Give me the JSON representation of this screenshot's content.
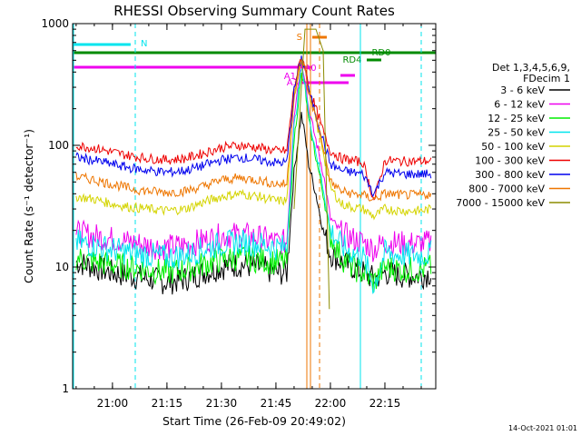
{
  "chart_data": {
    "type": "line",
    "title": "RHESSI Observing Summary Count Rates",
    "xlabel": "Start Time (26-Feb-09 20:49:02)",
    "ylabel": "Count Rate (s⁻¹ detector⁻¹)",
    "y_scale": "log",
    "ylim": [
      1,
      1000
    ],
    "xlim": [
      "20:49:02",
      "22:29:00"
    ],
    "x_ticks": [
      "21:00",
      "21:15",
      "21:30",
      "21:45",
      "22:00",
      "22:15"
    ],
    "y_ticks": [
      "1",
      "10",
      "100",
      "1000"
    ],
    "grid": false,
    "legend_position": "right",
    "legend_header": [
      "Det 1,3,4,5,6,9,",
      "FDecim 1"
    ],
    "timestamp": "14-Oct-2021 01:01",
    "x": [
      "20:50",
      "20:55",
      "21:00",
      "21:05",
      "21:10",
      "21:15",
      "21:20",
      "21:25",
      "21:30",
      "21:35",
      "21:40",
      "21:45",
      "21:48",
      "21:50",
      "21:52",
      "21:53",
      "21:54",
      "21:56",
      "21:58",
      "22:00",
      "22:03",
      "22:06",
      "22:09",
      "22:12",
      "22:15",
      "22:20",
      "22:25",
      "22:28"
    ],
    "series": [
      {
        "name": "3 - 6 keV",
        "color": "#000000",
        "values": [
          11,
          10,
          9,
          8.5,
          8,
          7.5,
          8,
          9,
          10,
          10.5,
          10,
          9,
          9,
          60,
          180,
          120,
          70,
          40,
          20,
          13,
          11,
          10,
          9,
          8,
          9,
          8.5,
          8.5,
          9
        ]
      },
      {
        "name": "6 - 12 keV",
        "color": "#ee00ee",
        "values": [
          19,
          18,
          17,
          16,
          15,
          14.5,
          15,
          16.5,
          18,
          18.5,
          17.5,
          16,
          16,
          180,
          500,
          360,
          200,
          110,
          60,
          25,
          19,
          17,
          16,
          14,
          16,
          15.5,
          15.5,
          16
        ]
      },
      {
        "name": "12 - 25 keV",
        "color": "#00ee00",
        "values": [
          12,
          11,
          10.5,
          10,
          9.5,
          9,
          9.5,
          10.5,
          11.5,
          12,
          11.5,
          11,
          11,
          110,
          380,
          300,
          160,
          80,
          40,
          18,
          12,
          10,
          9,
          7.5,
          10,
          9.5,
          9.5,
          10
        ]
      },
      {
        "name": "25 - 50 keV",
        "color": "#00e5ee",
        "values": [
          16,
          15,
          14,
          13,
          12.5,
          12,
          12.5,
          14,
          15.5,
          16,
          15.5,
          14.5,
          14.5,
          140,
          430,
          330,
          180,
          90,
          45,
          20,
          15,
          13,
          12,
          7,
          13,
          12.5,
          12.5,
          13
        ]
      },
      {
        "name": "50 - 100 keV",
        "color": "#d4d400",
        "values": [
          38,
          36,
          33,
          31,
          30,
          29,
          30,
          34,
          38,
          40,
          38,
          35,
          35,
          250,
          520,
          430,
          280,
          160,
          90,
          45,
          33,
          31,
          30,
          26,
          30,
          29,
          29,
          30
        ]
      },
      {
        "name": "100 - 300 keV",
        "color": "#ee0000",
        "values": [
          100,
          95,
          88,
          82,
          78,
          76,
          78,
          86,
          96,
          100,
          96,
          90,
          90,
          300,
          540,
          450,
          300,
          200,
          130,
          90,
          78,
          75,
          72,
          35,
          75,
          74,
          74,
          75
        ]
      },
      {
        "name": "300 - 800 keV",
        "color": "#0000ee",
        "values": [
          80,
          75,
          70,
          65,
          62,
          60,
          62,
          68,
          76,
          80,
          76,
          72,
          72,
          280,
          520,
          430,
          280,
          180,
          110,
          70,
          62,
          60,
          58,
          40,
          60,
          58,
          58,
          58
        ]
      },
      {
        "name": "800 - 7000 keV",
        "color": "#ee7600",
        "values": [
          55,
          52,
          48,
          44,
          42,
          41,
          42,
          46,
          52,
          54,
          52,
          48,
          48,
          260,
          510,
          420,
          270,
          170,
          100,
          50,
          42,
          40,
          39,
          36,
          40,
          39,
          39,
          40
        ]
      },
      {
        "name": "7000 - 15000 keV",
        "color": "#8b8b00",
        "values": [
          null,
          null,
          null,
          null,
          null,
          null,
          null,
          null,
          null,
          null,
          null,
          null,
          null,
          30,
          300,
          900,
          900,
          900,
          600,
          2,
          null,
          null,
          null,
          null,
          null,
          null,
          null,
          null
        ]
      }
    ],
    "annotations": {
      "labels": [
        "N",
        "S",
        "A0",
        "A1",
        "A3",
        "RD4",
        "RD0"
      ],
      "flags": [
        {
          "label": "N",
          "color": "#00e5ee",
          "start": "20:49:02",
          "end": "21:05:00"
        },
        {
          "label": "S",
          "color": "#ee7600",
          "start": "21:55:00",
          "end": "21:59:00"
        },
        {
          "label": "A0",
          "color": "#ee00ee",
          "start": "20:49:02",
          "end": "21:55:00"
        },
        {
          "label": "A3",
          "color": "#ee00ee",
          "start": "21:52:00",
          "end": "22:05:00"
        },
        {
          "label": "RD0",
          "color": "#008b00",
          "start": "20:49:02",
          "end": "22:29:00"
        },
        {
          "label": "RD4",
          "color": "#008b00",
          "start": "22:10:00",
          "end": "22:14:00"
        }
      ]
    }
  }
}
